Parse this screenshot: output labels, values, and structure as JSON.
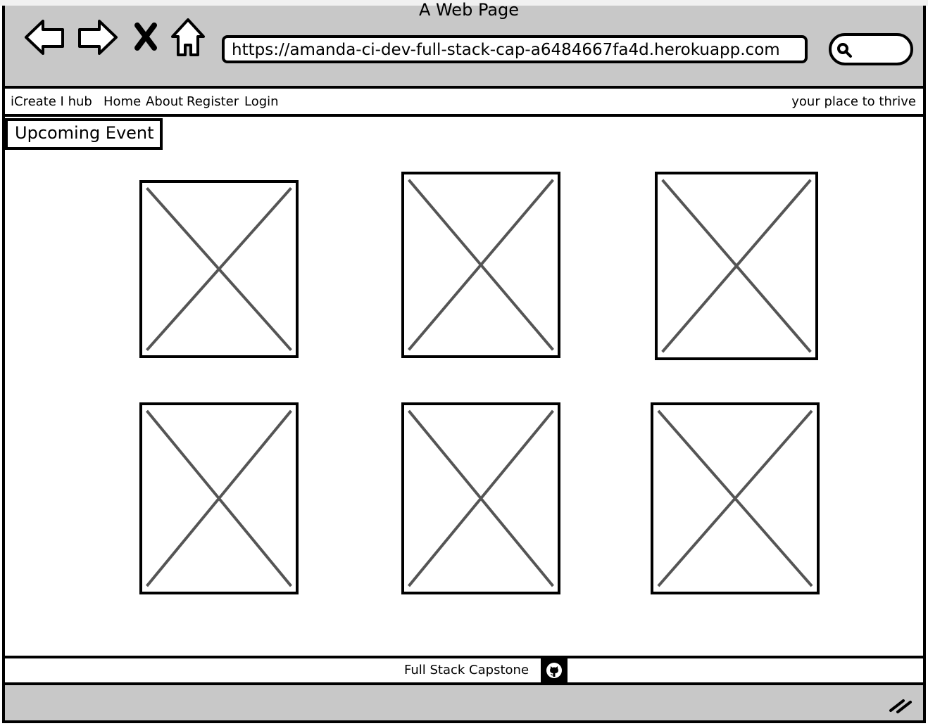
{
  "window": {
    "title": "A Web Page",
    "url": "https://amanda-ci-dev-full-stack-cap-a6484667fa4d.herokuapp.com",
    "icons": [
      "back-arrow-icon",
      "forward-arrow-icon",
      "close-icon",
      "home-icon",
      "search-icon"
    ]
  },
  "navbar": {
    "brand": "iCreate I hub",
    "links": [
      "Home",
      "About",
      "Register",
      "Login"
    ],
    "tagline": "your place to thrive"
  },
  "main": {
    "heading": "Upcoming Event",
    "placeholders": 6
  },
  "footer": {
    "text": "Full Stack Capstone",
    "icon": "github-icon"
  },
  "colors": {
    "chrome_gray": "#c8c8c8",
    "stroke": "#000000",
    "placeholder_cross": "#555555"
  }
}
